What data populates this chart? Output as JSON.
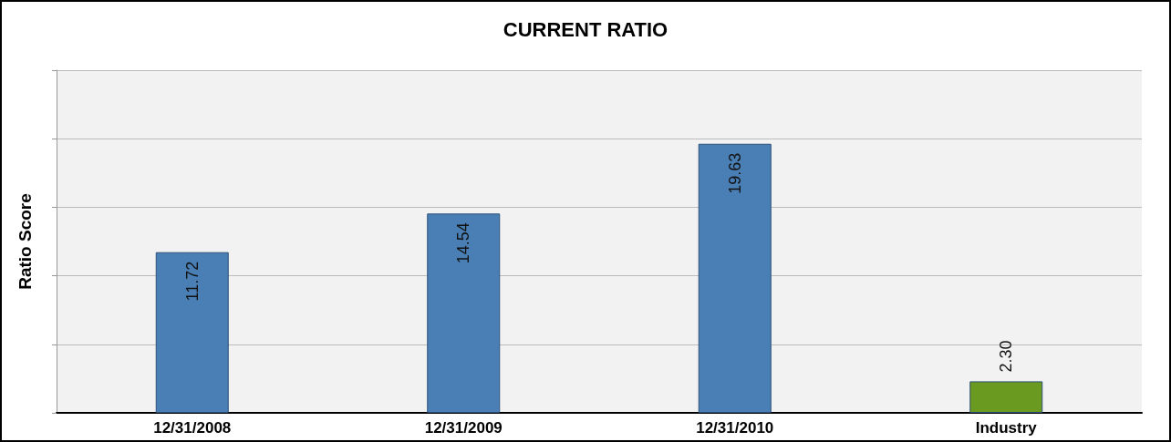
{
  "chart_data": {
    "type": "bar",
    "title": "CURRENT RATIO",
    "ylabel": "Ratio Score",
    "categories": [
      "12/31/2008",
      "12/31/2009",
      "12/31/2010",
      "Industry"
    ],
    "values": [
      11.72,
      14.54,
      19.63,
      2.3
    ],
    "colors": [
      "#4a7fb5",
      "#4a7fb5",
      "#4a7fb5",
      "#6a9a1f"
    ],
    "value_labels": [
      "11.72",
      "14.54",
      "19.63",
      "2.30"
    ],
    "ylim": [
      0,
      25
    ],
    "yticks": [
      {
        "value": 0,
        "label": null
      },
      {
        "value": 5,
        "label": null
      },
      {
        "value": 10,
        "label": null
      },
      {
        "value": 15,
        "label": null
      },
      {
        "value": 20,
        "label": null
      },
      {
        "value": 25,
        "label": null
      }
    ],
    "tick_labels": "x",
    "grid": "y"
  }
}
